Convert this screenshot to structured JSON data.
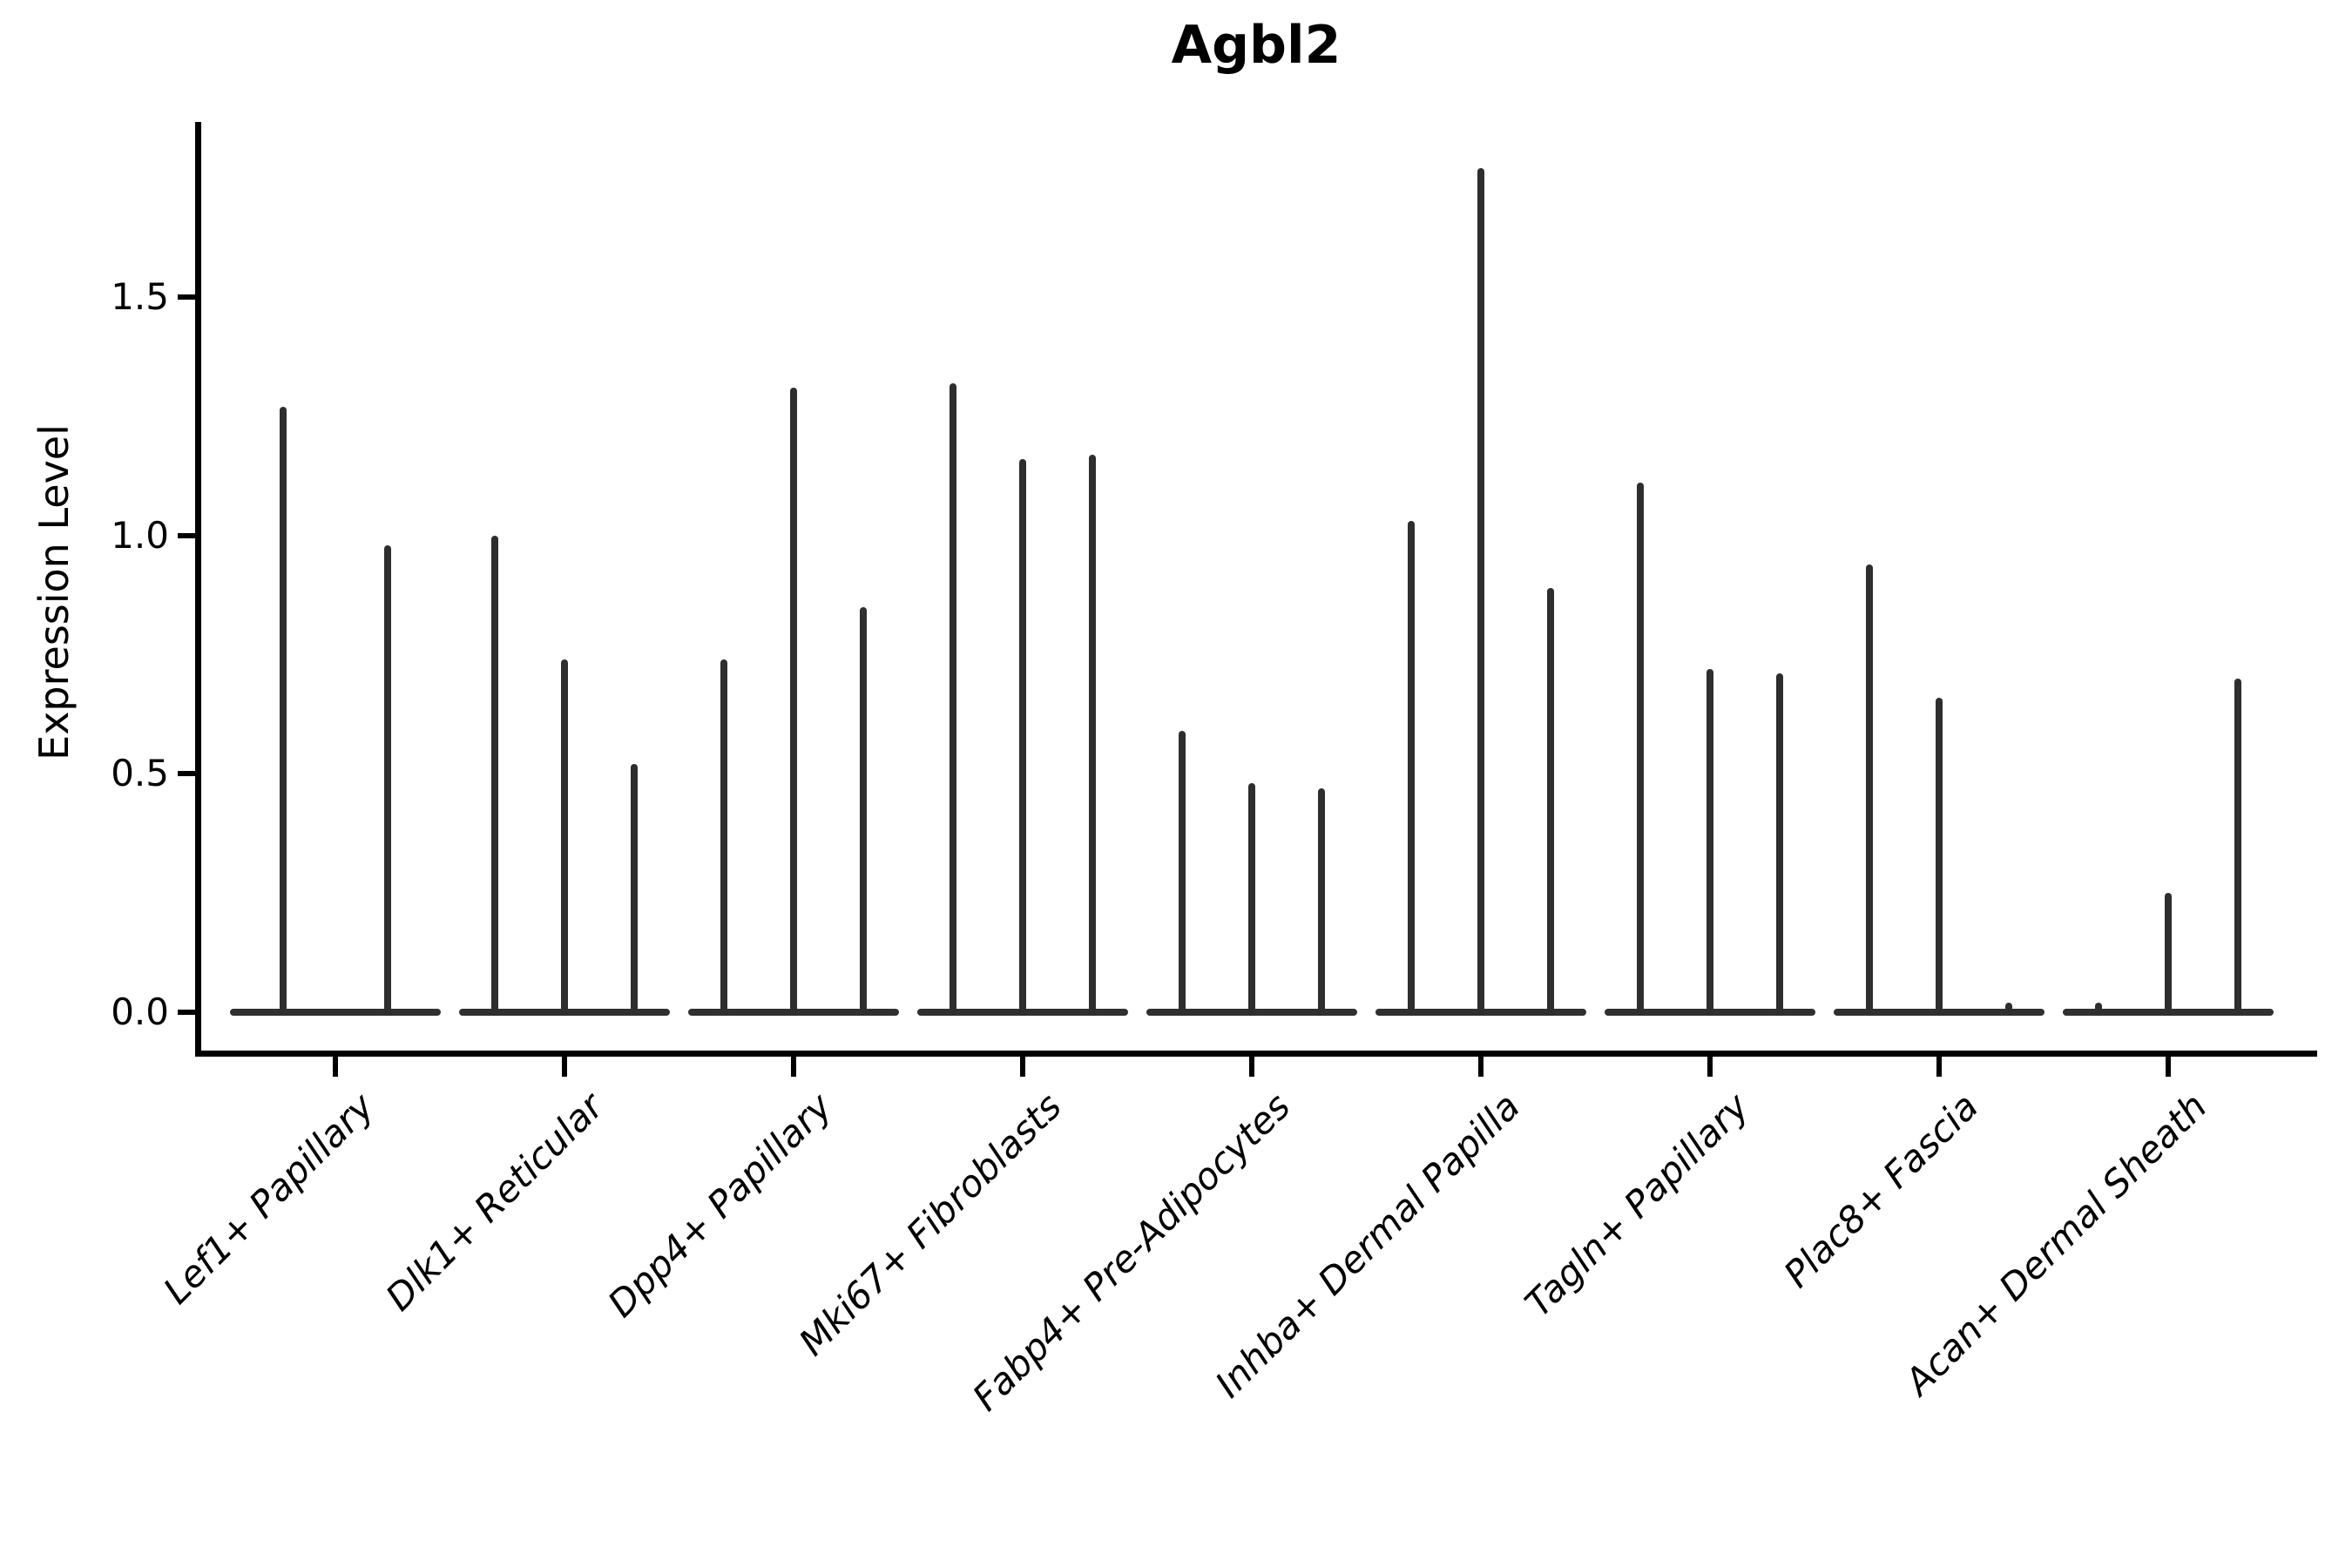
{
  "chart_data": {
    "type": "violin",
    "title": "Agbl2",
    "xlabel": "",
    "ylabel": "Expression Level",
    "ylim": [
      -0.09,
      1.87
    ],
    "yticks": [
      0.0,
      0.5,
      1.0,
      1.5
    ],
    "ytick_labels": [
      "0.0",
      "0.5",
      "1.0",
      "1.5"
    ],
    "grid": false,
    "legend": "none",
    "violin_color": "#2e2e2e",
    "axis_color": "#000000",
    "categories": [
      "Lef1+ Papillary",
      "Dlk1+ Reticular",
      "Dpp4+ Papillary",
      "Mki67+ Fibroblasts",
      "Fabp4+ Pre-Adipocytes",
      "Inhba+ Dermal Papilla",
      "Tagln+ Papillary",
      "Plac8+ Fascia",
      "Acan+ Dermal Sheath"
    ],
    "groups": [
      {
        "category": "Lef1+ Papillary",
        "violin_max": [
          1.27,
          0.98
        ]
      },
      {
        "category": "Dlk1+ Reticular",
        "violin_max": [
          1.0,
          0.74,
          0.52
        ]
      },
      {
        "category": "Dpp4+ Papillary",
        "violin_max": [
          0.74,
          1.31,
          0.85
        ]
      },
      {
        "category": "Mki67+ Fibroblasts",
        "violin_max": [
          1.32,
          1.16,
          1.17
        ]
      },
      {
        "category": "Fabp4+ Pre-Adipocytes",
        "violin_max": [
          0.59,
          0.48,
          0.47
        ]
      },
      {
        "category": "Inhba+ Dermal Papilla",
        "violin_max": [
          1.03,
          1.77,
          0.89
        ]
      },
      {
        "category": "Tagln+ Papillary",
        "violin_max": [
          1.11,
          0.72,
          0.71
        ]
      },
      {
        "category": "Plac8+ Fascia",
        "violin_max": [
          0.94,
          0.66,
          0.02
        ]
      },
      {
        "category": "Acan+ Dermal Sheath",
        "violin_max": [
          0.02,
          0.25,
          0.7
        ]
      }
    ]
  }
}
